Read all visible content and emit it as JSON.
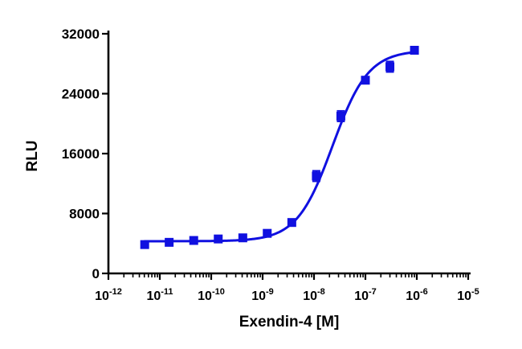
{
  "chart_data": {
    "type": "scatter",
    "title": "",
    "xlabel": "Exendin-4 [M]",
    "ylabel": "RLU",
    "x_scale": "log",
    "xlim": [
      1e-12,
      1e-05
    ],
    "ylim": [
      0,
      32000
    ],
    "y_ticks": [
      0,
      8000,
      16000,
      24000,
      32000
    ],
    "y_tick_labels": [
      "0",
      "8000",
      "16000",
      "24000",
      "32000"
    ],
    "x_tick_labels": [
      {
        "base": "10",
        "exp": "-12"
      },
      {
        "base": "10",
        "exp": "-11"
      },
      {
        "base": "10",
        "exp": "-10"
      },
      {
        "base": "10",
        "exp": "-9"
      },
      {
        "base": "10",
        "exp": "-8"
      },
      {
        "base": "10",
        "exp": "-7"
      },
      {
        "base": "10",
        "exp": "-6"
      },
      {
        "base": "10",
        "exp": "-5"
      }
    ],
    "grid": false,
    "color": "#1010e0",
    "series": [
      {
        "marker": "square",
        "x": [
          5.08e-12,
          1.52e-11,
          4.57e-11,
          1.37e-10,
          4.12e-10,
          1.23e-09,
          3.7e-09,
          1.11e-08,
          3.33e-08,
          1e-07,
          3e-07,
          9e-07
        ],
        "y": [
          3850,
          4150,
          4400,
          4600,
          4750,
          5350,
          6800,
          13000,
          21000,
          25800,
          27600,
          29800
        ],
        "y_err": [
          150,
          150,
          150,
          150,
          150,
          150,
          200,
          700,
          700,
          300,
          700,
          300
        ]
      }
    ],
    "fit_curve": {
      "bottom": 4300,
      "top": 29800,
      "ec50": 2.3e-08,
      "hill_slope": 1.25,
      "x_range": [
        5.08e-12,
        9e-07
      ]
    }
  }
}
